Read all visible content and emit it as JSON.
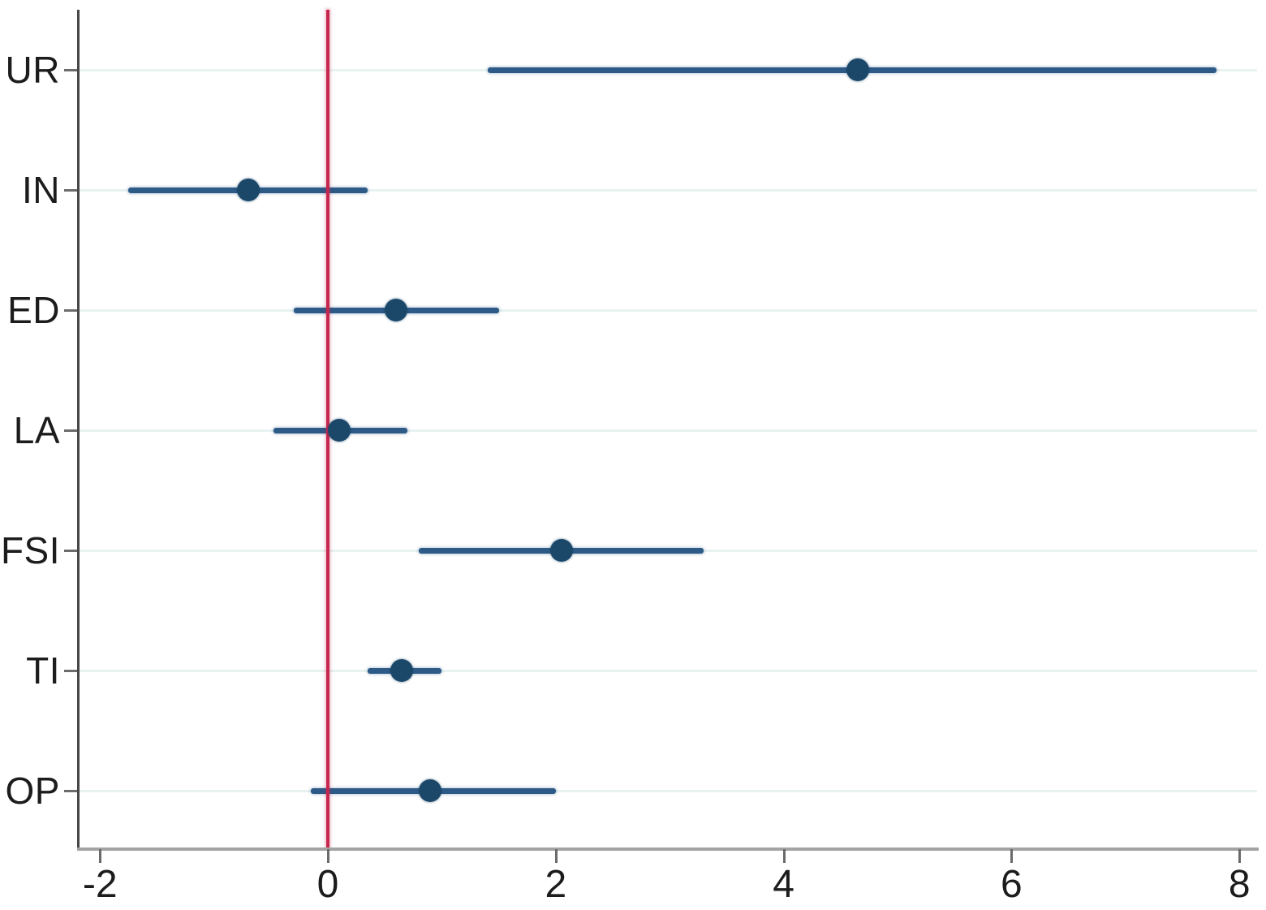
{
  "chart_data": {
    "type": "scatter",
    "subtype": "coefficient-forest-plot",
    "title": "",
    "xlabel": "",
    "ylabel": "",
    "categories": [
      "UR",
      "IN",
      "ED",
      "LA",
      "FSI",
      "TI",
      "OP"
    ],
    "series": [
      {
        "name": "estimate",
        "values": [
          4.65,
          -0.7,
          0.6,
          0.1,
          2.05,
          0.65,
          0.9
        ]
      },
      {
        "name": "ci_low",
        "values": [
          1.4,
          -1.75,
          -0.3,
          -0.48,
          0.8,
          0.35,
          -0.15
        ]
      },
      {
        "name": "ci_high",
        "values": [
          7.8,
          0.35,
          1.5,
          0.7,
          3.3,
          1.0,
          2.0
        ]
      }
    ],
    "x_ticks": [
      -2,
      0,
      2,
      4,
      6,
      8
    ],
    "x_tick_labels": [
      "-2",
      "0",
      "2",
      "4",
      "6",
      "8"
    ],
    "xlim": [
      -2.19,
      8.15
    ],
    "reference_line_x": 0,
    "grid": "horizontal",
    "legend": "none",
    "colors": {
      "marker": "#1b4769",
      "ci_line": "#2d5a87",
      "reference_line": "#c5274f",
      "gridline": "#e7f2f1",
      "x_axis_line": "#a3a3a3",
      "y_axis_line": "#474747",
      "tick": "#6b6b6b",
      "text": "#1c1c1c"
    }
  }
}
